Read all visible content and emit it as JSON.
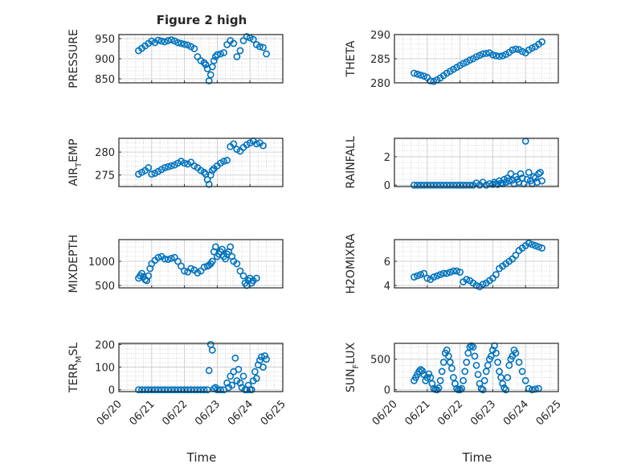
{
  "figure": {
    "title": "Figure 2 high"
  },
  "chart_data": [
    {
      "type": "scatter",
      "ylabel_base": "PRESSURE",
      "ylabel_sub": "",
      "ylabel_rest": "",
      "ylim": [
        840,
        960
      ],
      "yticks": [
        850,
        900,
        950
      ],
      "x": [
        0.6,
        0.7,
        0.8,
        0.9,
        1.0,
        1.1,
        1.2,
        1.3,
        1.4,
        1.5,
        1.6,
        1.7,
        1.8,
        1.9,
        2.0,
        2.1,
        2.2,
        2.3,
        2.4,
        2.5,
        2.6,
        2.65,
        2.7,
        2.75,
        2.8,
        2.85,
        2.9,
        2.95,
        3.0,
        3.1,
        3.2,
        3.3,
        3.4,
        3.5,
        3.6,
        3.7,
        3.8,
        3.9,
        4.0,
        4.1,
        4.2,
        4.3,
        4.4,
        4.5
      ],
      "y": [
        920,
        926,
        932,
        938,
        944,
        940,
        946,
        944,
        942,
        945,
        947,
        944,
        940,
        938,
        936,
        934,
        930,
        925,
        905,
        895,
        890,
        885,
        875,
        845,
        860,
        880,
        895,
        905,
        910,
        912,
        915,
        935,
        945,
        938,
        905,
        920,
        945,
        955,
        952,
        948,
        935,
        930,
        928,
        912
      ]
    },
    {
      "type": "scatter",
      "ylabel_base": "THETA",
      "ylabel_sub": "",
      "ylabel_rest": "",
      "ylim": [
        280,
        290
      ],
      "yticks": [
        280,
        285,
        290
      ],
      "x": [
        0.6,
        0.7,
        0.8,
        0.9,
        1.0,
        1.1,
        1.2,
        1.3,
        1.4,
        1.5,
        1.6,
        1.7,
        1.8,
        1.9,
        2.0,
        2.1,
        2.2,
        2.3,
        2.4,
        2.5,
        2.6,
        2.7,
        2.8,
        2.9,
        3.0,
        3.1,
        3.2,
        3.3,
        3.4,
        3.5,
        3.6,
        3.7,
        3.8,
        3.9,
        4.0,
        4.1,
        4.2,
        4.3,
        4.4,
        4.5
      ],
      "y": [
        282,
        281.8,
        281.6,
        281.4,
        281.1,
        280.4,
        280.3,
        280.6,
        281,
        281.5,
        282,
        282.4,
        282.8,
        283.2,
        283.6,
        284,
        284.3,
        284.7,
        285,
        285.4,
        285.7,
        286,
        286.1,
        286.2,
        285.8,
        285.6,
        285.5,
        285.6,
        285.9,
        286.3,
        286.8,
        287,
        286.9,
        286.5,
        286.2,
        286.8,
        287.2,
        287.5,
        288,
        288.5
      ]
    },
    {
      "type": "scatter",
      "ylabel_base": "AIR",
      "ylabel_sub": "T",
      "ylabel_rest": "EMP",
      "ylim": [
        272.5,
        283
      ],
      "yticks": [
        275,
        280
      ],
      "x": [
        0.6,
        0.7,
        0.8,
        0.9,
        1.0,
        1.1,
        1.2,
        1.3,
        1.4,
        1.5,
        1.6,
        1.7,
        1.8,
        1.9,
        2.0,
        2.1,
        2.2,
        2.3,
        2.4,
        2.5,
        2.6,
        2.65,
        2.7,
        2.75,
        2.8,
        2.85,
        2.9,
        3.0,
        3.1,
        3.2,
        3.3,
        3.4,
        3.5,
        3.6,
        3.7,
        3.8,
        3.9,
        4.0,
        4.1,
        4.2,
        4.3,
        4.4
      ],
      "y": [
        275.2,
        275.6,
        276,
        276.6,
        275.2,
        275.4,
        275.8,
        276.2,
        276.6,
        276.8,
        277,
        277.2,
        277.6,
        278,
        277.6,
        277.4,
        277.8,
        277,
        276.6,
        276,
        275.6,
        275.2,
        274,
        273,
        275,
        276,
        276.4,
        277,
        277.6,
        278,
        278.2,
        281.2,
        281.8,
        280.6,
        280.2,
        281,
        281.6,
        282,
        282.4,
        281.8,
        282,
        281.4
      ]
    },
    {
      "type": "scatter",
      "ylabel_base": "RAINFALL",
      "ylabel_sub": "",
      "ylabel_rest": "",
      "ylim": [
        -0.1,
        3.3
      ],
      "yticks": [
        0,
        2
      ],
      "x": [
        0.6,
        0.7,
        0.8,
        0.9,
        1.0,
        1.1,
        1.2,
        1.3,
        1.4,
        1.5,
        1.6,
        1.7,
        1.8,
        1.9,
        2.0,
        2.1,
        2.2,
        2.3,
        2.4,
        2.5,
        2.6,
        2.7,
        2.8,
        2.9,
        3.0,
        3.05,
        3.1,
        3.15,
        3.2,
        3.25,
        3.3,
        3.35,
        3.4,
        3.45,
        3.5,
        3.55,
        3.6,
        3.65,
        3.7,
        3.75,
        3.8,
        3.85,
        3.9,
        3.95,
        4.0,
        4.05,
        4.1,
        4.15,
        4.2,
        4.25,
        4.3,
        4.35,
        4.4,
        4.45,
        4.5
      ],
      "y": [
        0,
        0,
        0,
        0,
        0,
        0,
        0,
        0,
        0,
        0,
        0,
        0,
        0,
        0,
        0,
        0,
        0,
        0,
        0,
        0.15,
        0,
        0.2,
        0,
        0.1,
        0.05,
        0.2,
        0.1,
        0.05,
        0.3,
        0.15,
        0.1,
        0.4,
        0.2,
        0.5,
        0.3,
        0.8,
        0.35,
        0.1,
        0.6,
        0.4,
        0.2,
        0.8,
        0.5,
        0.1,
        3.1,
        0.4,
        0.9,
        0.3,
        0.1,
        0.6,
        0.5,
        0.2,
        0.8,
        0.9,
        0.3
      ]
    },
    {
      "type": "scatter",
      "ylabel_base": "MIXDEPTH",
      "ylabel_sub": "",
      "ylabel_rest": "",
      "ylim": [
        450,
        1450
      ],
      "yticks": [
        500,
        1000
      ],
      "x": [
        0.6,
        0.65,
        0.7,
        0.75,
        0.8,
        0.85,
        0.9,
        0.95,
        1.0,
        1.1,
        1.2,
        1.3,
        1.4,
        1.5,
        1.6,
        1.7,
        1.8,
        1.9,
        2.0,
        2.1,
        2.2,
        2.3,
        2.4,
        2.5,
        2.6,
        2.7,
        2.75,
        2.8,
        2.85,
        2.9,
        2.95,
        3.0,
        3.05,
        3.1,
        3.15,
        3.2,
        3.25,
        3.3,
        3.35,
        3.4,
        3.45,
        3.5,
        3.6,
        3.7,
        3.8,
        3.85,
        3.9,
        3.95,
        4.0,
        4.05,
        4.1,
        4.2
      ],
      "y": [
        650,
        700,
        750,
        680,
        620,
        600,
        700,
        850,
        950,
        1020,
        1080,
        1100,
        1050,
        1040,
        1060,
        1080,
        1000,
        900,
        800,
        780,
        850,
        820,
        760,
        800,
        880,
        900,
        920,
        950,
        1000,
        1200,
        1300,
        1100,
        1150,
        1200,
        1250,
        1100,
        1050,
        1150,
        1200,
        1300,
        1100,
        1000,
        950,
        800,
        700,
        550,
        500,
        600,
        650,
        550,
        600,
        650
      ]
    },
    {
      "type": "scatter",
      "ylabel_base": "H2OMIXRA",
      "ylabel_sub": "",
      "ylabel_rest": "",
      "ylim": [
        3.8,
        7.8
      ],
      "yticks": [
        4,
        6
      ],
      "x": [
        0.6,
        0.7,
        0.8,
        0.9,
        1.0,
        1.1,
        1.2,
        1.3,
        1.4,
        1.5,
        1.6,
        1.7,
        1.8,
        1.9,
        2.0,
        2.1,
        2.2,
        2.3,
        2.4,
        2.5,
        2.6,
        2.7,
        2.8,
        2.9,
        3.0,
        3.1,
        3.2,
        3.3,
        3.4,
        3.5,
        3.6,
        3.7,
        3.8,
        3.9,
        4.0,
        4.1,
        4.2,
        4.3,
        4.4,
        4.5
      ],
      "y": [
        4.7,
        4.8,
        4.9,
        5.0,
        4.6,
        4.5,
        4.7,
        4.8,
        4.9,
        5.0,
        5.0,
        5.1,
        5.2,
        5.2,
        5.1,
        4.3,
        4.5,
        4.4,
        4.2,
        4.0,
        3.9,
        4.1,
        4.2,
        4.4,
        4.6,
        4.9,
        5.4,
        5.6,
        5.8,
        6.0,
        6.2,
        6.5,
        6.9,
        7.1,
        7.3,
        7.5,
        7.4,
        7.3,
        7.2,
        7.1
      ]
    },
    {
      "type": "scatter",
      "ylabel_base": "TERR",
      "ylabel_sub": "M",
      "ylabel_rest": "SL",
      "ylim": [
        -8,
        205
      ],
      "yticks": [
        0,
        100,
        200
      ],
      "x": [
        0.6,
        0.7,
        0.8,
        0.9,
        1.0,
        1.1,
        1.2,
        1.3,
        1.4,
        1.5,
        1.6,
        1.7,
        1.8,
        1.9,
        2.0,
        2.1,
        2.2,
        2.3,
        2.4,
        2.5,
        2.6,
        2.7,
        2.75,
        2.8,
        2.85,
        2.9,
        2.95,
        3.0,
        3.1,
        3.2,
        3.3,
        3.35,
        3.4,
        3.45,
        3.5,
        3.55,
        3.6,
        3.65,
        3.7,
        3.75,
        3.8,
        3.85,
        3.9,
        3.95,
        4.0,
        4.05,
        4.1,
        4.15,
        4.2,
        4.25,
        4.3,
        4.35,
        4.4,
        4.45,
        4.5
      ],
      "y": [
        0,
        0,
        0,
        0,
        0,
        0,
        0,
        0,
        0,
        0,
        0,
        0,
        0,
        0,
        0,
        0,
        0,
        0,
        0,
        0,
        0,
        0,
        85,
        200,
        175,
        5,
        10,
        0,
        0,
        0,
        30,
        10,
        60,
        20,
        80,
        140,
        40,
        90,
        30,
        10,
        60,
        0,
        0,
        20,
        0,
        0,
        40,
        80,
        50,
        110,
        130,
        145,
        100,
        150,
        135
      ]
    },
    {
      "type": "scatter",
      "ylabel_base": "SUN",
      "ylabel_sub": "F",
      "ylabel_rest": "LUX",
      "ylim": [
        -30,
        760
      ],
      "yticks": [
        0,
        500
      ],
      "x": [
        0.6,
        0.65,
        0.7,
        0.75,
        0.8,
        0.85,
        0.9,
        0.95,
        1.0,
        1.05,
        1.1,
        1.15,
        1.2,
        1.25,
        1.3,
        1.35,
        1.4,
        1.45,
        1.5,
        1.55,
        1.6,
        1.65,
        1.7,
        1.75,
        1.8,
        1.85,
        1.9,
        1.95,
        2.0,
        2.05,
        2.1,
        2.15,
        2.2,
        2.25,
        2.3,
        2.35,
        2.4,
        2.45,
        2.5,
        2.55,
        2.6,
        2.65,
        2.7,
        2.75,
        2.8,
        2.85,
        2.9,
        2.95,
        3.0,
        3.05,
        3.1,
        3.15,
        3.2,
        3.25,
        3.3,
        3.35,
        3.4,
        3.45,
        3.5,
        3.55,
        3.6,
        3.65,
        3.7,
        3.8,
        3.9,
        4.0,
        4.1,
        4.2,
        4.3,
        4.4
      ],
      "y": [
        150,
        200,
        250,
        300,
        330,
        310,
        250,
        150,
        200,
        260,
        200,
        100,
        20,
        5,
        0,
        30,
        150,
        300,
        450,
        600,
        650,
        550,
        450,
        350,
        200,
        100,
        20,
        0,
        0,
        20,
        150,
        300,
        450,
        600,
        700,
        720,
        700,
        550,
        400,
        250,
        100,
        20,
        0,
        150,
        300,
        400,
        500,
        550,
        650,
        720,
        600,
        450,
        300,
        200,
        100,
        30,
        0,
        200,
        400,
        500,
        550,
        650,
        600,
        450,
        300,
        150,
        20,
        0,
        10,
        20
      ]
    }
  ],
  "x_axis": {
    "ticks": [
      "06/20",
      "06/21",
      "06/22",
      "06/23",
      "06/24",
      "06/25"
    ],
    "label": "Time"
  },
  "colors": {
    "marker": "#0072BD",
    "grid": "#b8b8b8",
    "axis": "#262626"
  }
}
